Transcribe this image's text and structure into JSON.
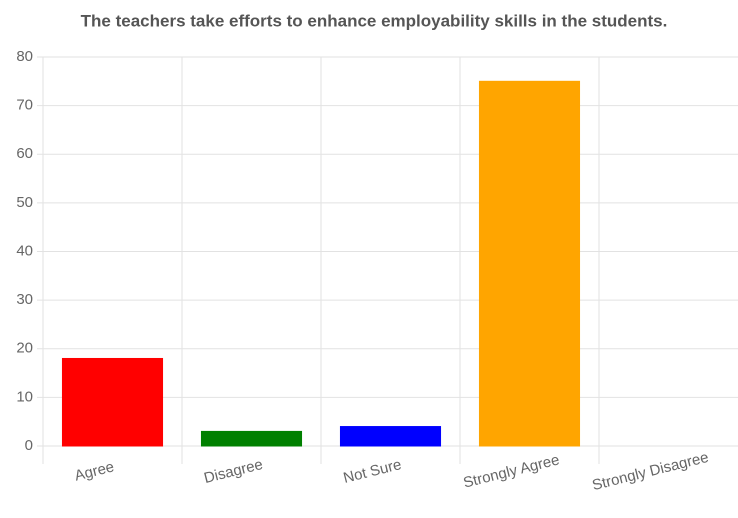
{
  "chart_data": {
    "type": "bar",
    "title": "The teachers take efforts to enhance employability skills in the students.",
    "categories": [
      "Agree",
      "Disagree",
      "Not Sure",
      "Strongly Agree",
      "Strongly Disagree"
    ],
    "values": [
      18,
      3,
      4,
      75,
      0
    ],
    "colors": [
      "#ff0000",
      "#008000",
      "#0000ff",
      "#ffa500",
      "#ffc0cb"
    ],
    "ylim": [
      0,
      80
    ],
    "yticks": [
      0,
      10,
      20,
      30,
      40,
      50,
      60,
      70,
      80
    ],
    "grid": true
  }
}
